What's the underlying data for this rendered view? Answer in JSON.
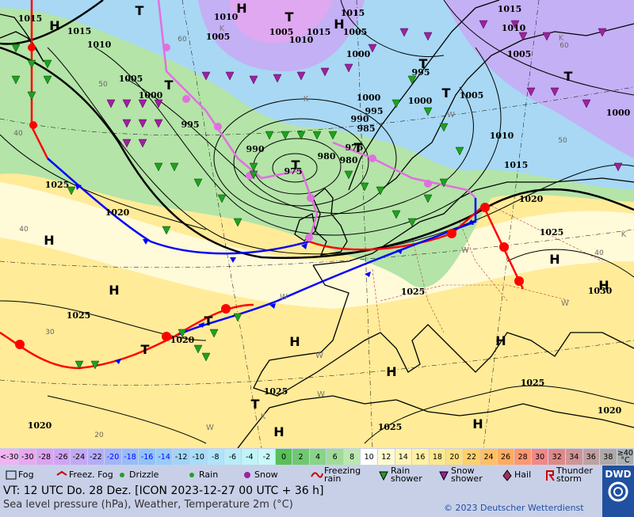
{
  "map": {
    "pressure_labels": [
      "1015",
      "1010",
      "1005",
      "1005",
      "1010",
      "1015",
      "1015",
      "1005",
      "1000",
      "1015",
      "1010",
      "1005",
      "1000",
      "1015",
      "1010",
      "1005",
      "1000",
      "995",
      "990",
      "975",
      "980",
      "985",
      "990",
      "995",
      "1000",
      "1000",
      "995",
      "1005",
      "1010",
      "1015",
      "975",
      "980",
      "1020",
      "1025",
      "1030",
      "1025",
      "1020",
      "1025",
      "1020",
      "1025",
      "1025",
      "1025",
      "1025",
      "1020",
      "1020"
    ],
    "centres": [
      "H",
      "H",
      "H",
      "H",
      "H",
      "H",
      "H",
      "H",
      "H",
      "H",
      "H",
      "H",
      "T",
      "T",
      "T",
      "T",
      "T",
      "T",
      "T",
      "T",
      "T",
      "T",
      "T"
    ],
    "grid_labels": [
      "60",
      "50",
      "40",
      "40",
      "30",
      "20",
      "60",
      "50",
      "40"
    ],
    "other_labels": [
      "K",
      "K",
      "K",
      "W",
      "W",
      "W",
      "W",
      "K",
      "W",
      "W",
      "W",
      "K"
    ]
  },
  "temperature_scale": [
    {
      "label": "<-30",
      "color": "#f0b4f0"
    },
    {
      "label": "-30",
      "color": "#e8a8f0"
    },
    {
      "label": "-28",
      "color": "#dca4f0"
    },
    {
      "label": "-26",
      "color": "#d0a4f4"
    },
    {
      "label": "-24",
      "color": "#c4a8f4"
    },
    {
      "label": "-22",
      "color": "#b4acf8"
    },
    {
      "label": "-20",
      "color": "#a4b4f8"
    },
    {
      "label": "-18",
      "color": "#98bcf8"
    },
    {
      "label": "-16",
      "color": "#90c4f8"
    },
    {
      "label": "-14",
      "color": "#98ccf8"
    },
    {
      "label": "-12",
      "color": "#a0d4f8"
    },
    {
      "label": "-10",
      "color": "#a8dcf8"
    },
    {
      "label": "-8",
      "color": "#b0e4f8"
    },
    {
      "label": "-6",
      "color": "#b8ecf8"
    },
    {
      "label": "-4",
      "color": "#c0f4f8"
    },
    {
      "label": "-2",
      "color": "#c8f8f8"
    },
    {
      "label": "0",
      "color": "#58c058"
    },
    {
      "label": "2",
      "color": "#70c870"
    },
    {
      "label": "4",
      "color": "#88d488"
    },
    {
      "label": "6",
      "color": "#a0dc98"
    },
    {
      "label": "8",
      "color": "#bce8b0"
    },
    {
      "label": "10",
      "color": "#ffffff"
    },
    {
      "label": "12",
      "color": "#fffad0"
    },
    {
      "label": "14",
      "color": "#fff4b8"
    },
    {
      "label": "16",
      "color": "#fff0a4"
    },
    {
      "label": "18",
      "color": "#ffe890"
    },
    {
      "label": "20",
      "color": "#ffe080"
    },
    {
      "label": "22",
      "color": "#ffd070"
    },
    {
      "label": "24",
      "color": "#ffc064"
    },
    {
      "label": "26",
      "color": "#ffac60"
    },
    {
      "label": "28",
      "color": "#ff9870"
    },
    {
      "label": "30",
      "color": "#f08888"
    },
    {
      "label": "32",
      "color": "#e08888"
    },
    {
      "label": "34",
      "color": "#d09494"
    },
    {
      "label": "36",
      "color": "#c0a0a0"
    },
    {
      "label": "38",
      "color": "#b0a8a8"
    },
    {
      "label": "≥40 °C",
      "color": "#a8b0b0"
    }
  ],
  "legend": [
    "Fog",
    "Freez. Fog",
    "Drizzle",
    "Rain",
    "Snow",
    "Freezing rain",
    "Rain shower",
    "Snow shower",
    "Hail",
    "Thunder storm"
  ],
  "footer": {
    "valid_time": "VT: 12 UTC Do.  28 Dez. [ICON 2023-12-27  00 UTC + 36 h]",
    "description": "Sea level pressure (hPa), Weather, Temperature 2m (°C)",
    "copyright": "© 2023 Deutscher Wetterdienst",
    "logo": "DWD"
  }
}
